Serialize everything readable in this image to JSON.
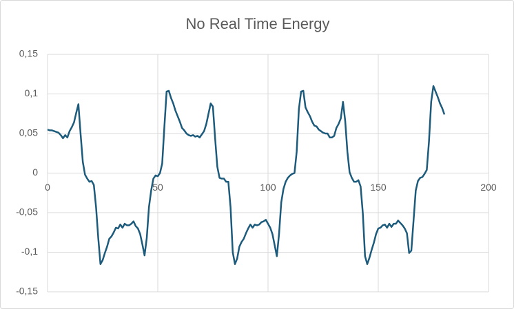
{
  "chart_data": {
    "type": "line",
    "title": "No Real Time Energy",
    "x": [
      0,
      1,
      2,
      3,
      4,
      5,
      6,
      7,
      8,
      9,
      10,
      11,
      12,
      13,
      14,
      15,
      16,
      17,
      18,
      19,
      20,
      21,
      22,
      23,
      24,
      25,
      26,
      27,
      28,
      29,
      30,
      31,
      32,
      33,
      34,
      35,
      36,
      37,
      38,
      39,
      40,
      41,
      42,
      43,
      44,
      45,
      46,
      47,
      48,
      49,
      50,
      51,
      52,
      53,
      54,
      55,
      56,
      57,
      58,
      59,
      60,
      61,
      62,
      63,
      64,
      65,
      66,
      67,
      68,
      69,
      70,
      71,
      72,
      73,
      74,
      75,
      76,
      77,
      78,
      79,
      80,
      81,
      82,
      83,
      84,
      85,
      86,
      87,
      88,
      89,
      90,
      91,
      92,
      93,
      94,
      95,
      96,
      97,
      98,
      99,
      100,
      101,
      102,
      103,
      104,
      105,
      106,
      107,
      108,
      109,
      110,
      111,
      112,
      113,
      114,
      115,
      116,
      117,
      118,
      119,
      120,
      121,
      122,
      123,
      124,
      125,
      126,
      127,
      128,
      129,
      130,
      131,
      132,
      133,
      134,
      135,
      136,
      137,
      138,
      139,
      140,
      141,
      142,
      143,
      144,
      145,
      146,
      147,
      148,
      149,
      150,
      151,
      152,
      153,
      154,
      155,
      156,
      157,
      158,
      159,
      160,
      161,
      162,
      163,
      164,
      165,
      166,
      167,
      168,
      169,
      170,
      171,
      172,
      173,
      174,
      175,
      176,
      177,
      178,
      179,
      180
    ],
    "values": [
      0.055,
      0.054,
      0.054,
      0.053,
      0.052,
      0.051,
      0.048,
      0.044,
      0.048,
      0.045,
      0.053,
      0.058,
      0.064,
      0.076,
      0.087,
      0.049,
      0.014,
      -0.002,
      -0.007,
      -0.011,
      -0.01,
      -0.015,
      -0.043,
      -0.082,
      -0.115,
      -0.11,
      -0.101,
      -0.093,
      -0.083,
      -0.08,
      -0.075,
      -0.069,
      -0.07,
      -0.065,
      -0.069,
      -0.064,
      -0.066,
      -0.066,
      -0.064,
      -0.061,
      -0.067,
      -0.07,
      -0.077,
      -0.09,
      -0.104,
      -0.082,
      -0.043,
      -0.022,
      -0.007,
      -0.003,
      -0.004,
      0,
      0.012,
      0.059,
      0.103,
      0.104,
      0.095,
      0.088,
      0.079,
      0.072,
      0.065,
      0.057,
      0.054,
      0.05,
      0.048,
      0.047,
      0.048,
      0.046,
      0.047,
      0.045,
      0.049,
      0.053,
      0.062,
      0.075,
      0.088,
      0.084,
      0.044,
      0.008,
      -0.006,
      -0.007,
      -0.007,
      -0.011,
      -0.011,
      -0.043,
      -0.1,
      -0.115,
      -0.108,
      -0.093,
      -0.087,
      -0.083,
      -0.076,
      -0.07,
      -0.065,
      -0.069,
      -0.065,
      -0.066,
      -0.065,
      -0.062,
      -0.061,
      -0.059,
      -0.064,
      -0.069,
      -0.077,
      -0.091,
      -0.105,
      -0.077,
      -0.037,
      -0.02,
      -0.011,
      -0.006,
      -0.003,
      -0.001,
      0,
      0.027,
      0.081,
      0.103,
      0.104,
      0.083,
      0.077,
      0.072,
      0.065,
      0.06,
      0.059,
      0.055,
      0.053,
      0.051,
      0.05,
      0.05,
      0.045,
      0.045,
      0.047,
      0.057,
      0.062,
      0.069,
      0.09,
      0.066,
      0.027,
      0.001,
      -0.006,
      -0.011,
      -0.011,
      -0.009,
      -0.017,
      -0.051,
      -0.105,
      -0.115,
      -0.107,
      -0.097,
      -0.088,
      -0.077,
      -0.07,
      -0.069,
      -0.066,
      -0.065,
      -0.069,
      -0.064,
      -0.068,
      -0.064,
      -0.064,
      -0.06,
      -0.063,
      -0.066,
      -0.07,
      -0.076,
      -0.101,
      -0.098,
      -0.06,
      -0.022,
      -0.01,
      -0.006,
      -0.005,
      -0.001,
      0.004,
      0.04,
      0.09,
      0.11,
      0.103,
      0.096,
      0.088,
      0.082,
      0.074
    ],
    "color": "#1d5b7c",
    "xlim": [
      0,
      200
    ],
    "xticks": [
      0,
      50,
      100,
      150,
      200
    ],
    "ylim": [
      -0.15,
      0.15
    ],
    "yticks": [
      {
        "value": 0.15,
        "label": "0,15"
      },
      {
        "value": 0.1,
        "label": "0,1"
      },
      {
        "value": 0.05,
        "label": "0,05"
      },
      0,
      {
        "value": -0.05,
        "label": "-0,05"
      },
      {
        "value": -0.1,
        "label": "-0,1"
      },
      {
        "value": -0.15,
        "label": "-0,15"
      }
    ],
    "grid": true
  }
}
